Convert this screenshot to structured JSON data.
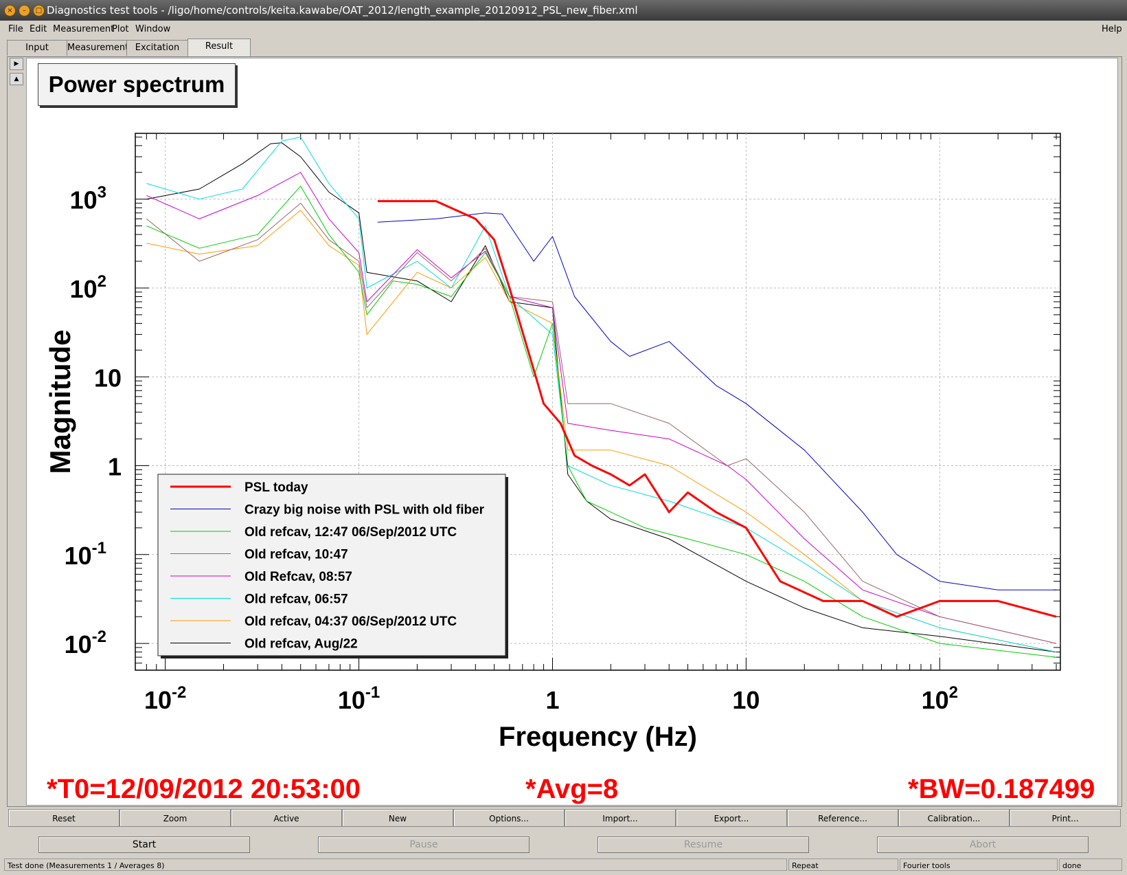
{
  "window": {
    "title": "Diagnostics test tools - /ligo/home/controls/keita.kawabe/OAT_2012/length_example_20120912_PSL_new_fiber.xml"
  },
  "menu": {
    "file": "File",
    "edit": "Edit",
    "measurement": "Measurement",
    "plot": "Plot",
    "window": "Window",
    "help": "Help"
  },
  "tabs": [
    "Input",
    "Measurement",
    "Excitation",
    "Result"
  ],
  "plot_title": "Power spectrum",
  "chart_data": {
    "type": "line",
    "xscale": "log",
    "yscale": "log",
    "xlim": [
      0.007,
      420
    ],
    "ylim": [
      0.005,
      5500
    ],
    "xlabel": "Frequency (Hz)",
    "ylabel": "Magnitude",
    "grid": true,
    "legend_position": "bottom-left",
    "x_ticks": [
      {
        "v": 0.01,
        "base": "10",
        "exp": "-2"
      },
      {
        "v": 0.1,
        "base": "10",
        "exp": "-1"
      },
      {
        "v": 1,
        "base": "1",
        "exp": ""
      },
      {
        "v": 10,
        "base": "10",
        "exp": ""
      },
      {
        "v": 100,
        "base": "10",
        "exp": "2"
      }
    ],
    "y_ticks": [
      {
        "v": 0.01,
        "base": "10",
        "exp": "-2"
      },
      {
        "v": 0.1,
        "base": "10",
        "exp": "-1"
      },
      {
        "v": 1,
        "base": "1",
        "exp": ""
      },
      {
        "v": 10,
        "base": "10",
        "exp": ""
      },
      {
        "v": 100,
        "base": "10",
        "exp": "2"
      },
      {
        "v": 1000,
        "base": "10",
        "exp": "3"
      }
    ],
    "series": [
      {
        "name": "PSL today",
        "color": "#ff0000",
        "width": 3,
        "points": [
          [
            0.125,
            950
          ],
          [
            0.25,
            950
          ],
          [
            0.4,
            600
          ],
          [
            0.5,
            350
          ],
          [
            0.6,
            100
          ],
          [
            0.8,
            12
          ],
          [
            0.9,
            5
          ],
          [
            1.1,
            3
          ],
          [
            1.3,
            1.3
          ],
          [
            1.6,
            1
          ],
          [
            2,
            0.8
          ],
          [
            2.5,
            0.6
          ],
          [
            3,
            0.8
          ],
          [
            4,
            0.3
          ],
          [
            5,
            0.5
          ],
          [
            7,
            0.3
          ],
          [
            10,
            0.2
          ],
          [
            15,
            0.05
          ],
          [
            25,
            0.03
          ],
          [
            40,
            0.03
          ],
          [
            60,
            0.02
          ],
          [
            100,
            0.03
          ],
          [
            200,
            0.03
          ],
          [
            400,
            0.02
          ]
        ]
      },
      {
        "name": "Crazy big noise with PSL with old fiber",
        "color": "#0000cc",
        "width": 1,
        "points": [
          [
            0.125,
            550
          ],
          [
            0.25,
            600
          ],
          [
            0.45,
            700
          ],
          [
            0.55,
            680
          ],
          [
            0.8,
            200
          ],
          [
            1,
            380
          ],
          [
            1.3,
            80
          ],
          [
            2,
            25
          ],
          [
            2.5,
            17
          ],
          [
            4,
            25
          ],
          [
            7,
            8
          ],
          [
            10,
            5
          ],
          [
            20,
            1.5
          ],
          [
            40,
            0.3
          ],
          [
            60,
            0.1
          ],
          [
            100,
            0.05
          ],
          [
            200,
            0.04
          ],
          [
            400,
            0.04
          ]
        ]
      },
      {
        "name": "Old refcav, 12:47 06/Sep/2012 UTC",
        "color": "#00cc00",
        "width": 1,
        "points": [
          [
            0.008,
            500
          ],
          [
            0.015,
            280
          ],
          [
            0.03,
            400
          ],
          [
            0.05,
            1400
          ],
          [
            0.07,
            400
          ],
          [
            0.1,
            150
          ],
          [
            0.11,
            50
          ],
          [
            0.15,
            120
          ],
          [
            0.2,
            110
          ],
          [
            0.3,
            80
          ],
          [
            0.45,
            250
          ],
          [
            0.6,
            80
          ],
          [
            0.8,
            10
          ],
          [
            1,
            40
          ],
          [
            1.2,
            1
          ],
          [
            1.5,
            0.4
          ],
          [
            2,
            0.3
          ],
          [
            3,
            0.2
          ],
          [
            5,
            0.15
          ],
          [
            10,
            0.1
          ],
          [
            20,
            0.05
          ],
          [
            40,
            0.02
          ],
          [
            100,
            0.01
          ],
          [
            400,
            0.007
          ]
        ]
      },
      {
        "name": "Old refcav, 10:47",
        "color": "#996666",
        "width": 1,
        "points": [
          [
            0.008,
            600
          ],
          [
            0.015,
            200
          ],
          [
            0.03,
            350
          ],
          [
            0.05,
            900
          ],
          [
            0.07,
            350
          ],
          [
            0.1,
            200
          ],
          [
            0.11,
            60
          ],
          [
            0.2,
            250
          ],
          [
            0.3,
            120
          ],
          [
            0.45,
            280
          ],
          [
            0.6,
            80
          ],
          [
            1,
            70
          ],
          [
            1.2,
            5
          ],
          [
            2,
            5
          ],
          [
            4,
            3
          ],
          [
            8,
            1
          ],
          [
            10,
            1.2
          ],
          [
            20,
            0.3
          ],
          [
            40,
            0.05
          ],
          [
            100,
            0.02
          ],
          [
            400,
            0.01
          ]
        ]
      },
      {
        "name": "Old Refcav, 08:57",
        "color": "#cc00cc",
        "width": 1,
        "points": [
          [
            0.008,
            1100
          ],
          [
            0.015,
            600
          ],
          [
            0.03,
            1100
          ],
          [
            0.05,
            2000
          ],
          [
            0.07,
            600
          ],
          [
            0.1,
            250
          ],
          [
            0.11,
            70
          ],
          [
            0.2,
            270
          ],
          [
            0.3,
            130
          ],
          [
            0.45,
            260
          ],
          [
            0.6,
            80
          ],
          [
            1,
            60
          ],
          [
            1.2,
            3
          ],
          [
            2,
            2.5
          ],
          [
            4,
            2
          ],
          [
            8,
            1
          ],
          [
            10,
            0.7
          ],
          [
            20,
            0.15
          ],
          [
            40,
            0.04
          ],
          [
            100,
            0.02
          ],
          [
            400,
            0.01
          ]
        ]
      },
      {
        "name": "Old refcav, 06:57",
        "color": "#00dddd",
        "width": 1,
        "points": [
          [
            0.008,
            1500
          ],
          [
            0.015,
            1000
          ],
          [
            0.025,
            1300
          ],
          [
            0.04,
            4500
          ],
          [
            0.05,
            5000
          ],
          [
            0.07,
            1500
          ],
          [
            0.1,
            600
          ],
          [
            0.11,
            100
          ],
          [
            0.2,
            200
          ],
          [
            0.3,
            100
          ],
          [
            0.45,
            500
          ],
          [
            0.6,
            80
          ],
          [
            1,
            30
          ],
          [
            1.2,
            1
          ],
          [
            2,
            0.6
          ],
          [
            4,
            0.4
          ],
          [
            10,
            0.2
          ],
          [
            20,
            0.08
          ],
          [
            40,
            0.03
          ],
          [
            100,
            0.015
          ],
          [
            400,
            0.008
          ]
        ]
      },
      {
        "name": "Old refcav, 04:37 06/Sep/2012 UTC",
        "color": "#ff9900",
        "width": 1,
        "points": [
          [
            0.008,
            320
          ],
          [
            0.015,
            240
          ],
          [
            0.03,
            300
          ],
          [
            0.05,
            750
          ],
          [
            0.07,
            300
          ],
          [
            0.1,
            180
          ],
          [
            0.11,
            30
          ],
          [
            0.2,
            150
          ],
          [
            0.3,
            100
          ],
          [
            0.45,
            220
          ],
          [
            0.6,
            70
          ],
          [
            1,
            40
          ],
          [
            1.2,
            1.5
          ],
          [
            2,
            1.5
          ],
          [
            4,
            1
          ],
          [
            10,
            0.3
          ],
          [
            20,
            0.1
          ],
          [
            40,
            0.03
          ],
          [
            100,
            0.015
          ],
          [
            400,
            0.008
          ]
        ]
      },
      {
        "name": "Old refcav, Aug/22",
        "color": "#000000",
        "width": 1,
        "points": [
          [
            0.008,
            1000
          ],
          [
            0.015,
            1300
          ],
          [
            0.025,
            2500
          ],
          [
            0.035,
            4200
          ],
          [
            0.04,
            4300
          ],
          [
            0.05,
            3000
          ],
          [
            0.07,
            1200
          ],
          [
            0.1,
            700
          ],
          [
            0.11,
            150
          ],
          [
            0.2,
            120
          ],
          [
            0.3,
            70
          ],
          [
            0.45,
            300
          ],
          [
            0.6,
            70
          ],
          [
            1,
            60
          ],
          [
            1.2,
            0.8
          ],
          [
            1.5,
            0.4
          ],
          [
            2,
            0.25
          ],
          [
            4,
            0.15
          ],
          [
            10,
            0.05
          ],
          [
            20,
            0.025
          ],
          [
            40,
            0.015
          ],
          [
            100,
            0.012
          ],
          [
            400,
            0.008
          ]
        ]
      }
    ]
  },
  "info": {
    "t0": "*T0=12/09/2012 20:53:00",
    "avg": "*Avg=8",
    "bw": "*BW=0.187499"
  },
  "plot_buttons": [
    "Reset",
    "Zoom",
    "Active",
    "New",
    "Options...",
    "Import...",
    "Export...",
    "Reference...",
    "Calibration...",
    "Print..."
  ],
  "controls": {
    "start": "Start",
    "pause": "Pause",
    "resume": "Resume",
    "abort": "Abort"
  },
  "status": {
    "message": "Test done (Measurements 1 / Averages 8)",
    "repeat": "Repeat",
    "tool": "Fourier tools",
    "state": "done"
  }
}
